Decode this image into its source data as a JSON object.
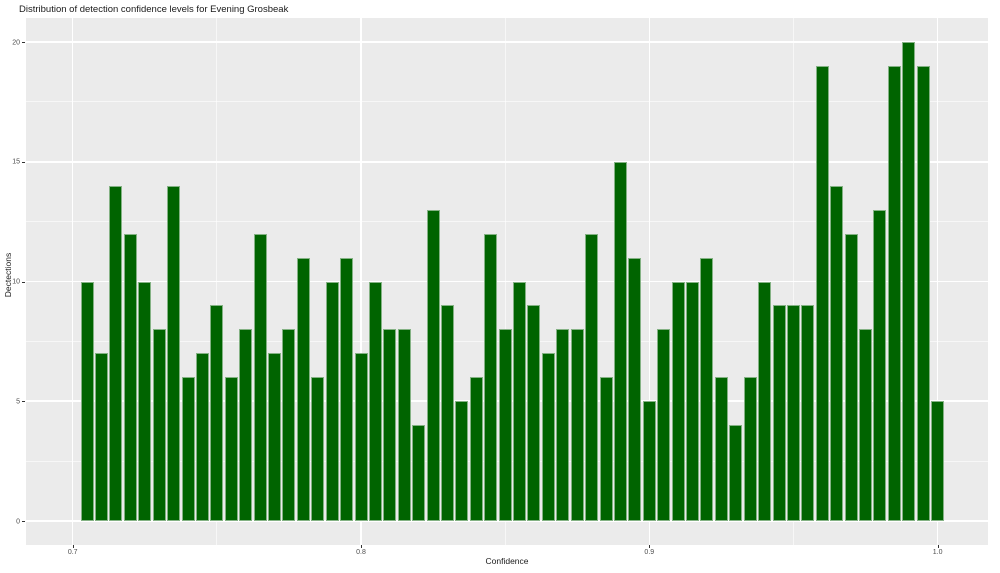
{
  "title": "Distribution of detection confidence levels for Evening Grosbeak",
  "chart_data": {
    "type": "bar",
    "subtype": "histogram",
    "title": "Distribution of detection confidence levels for Evening Grosbeak",
    "xlabel": "Confidence",
    "ylabel": "Dectections",
    "xlim": [
      0.686,
      1.018
    ],
    "ylim": [
      -1,
      21
    ],
    "grid": "on",
    "legend": "none",
    "bin_width": 0.005,
    "bin_centers": [
      0.705,
      0.71,
      0.715,
      0.72,
      0.725,
      0.73,
      0.735,
      0.74,
      0.745,
      0.75,
      0.755,
      0.76,
      0.765,
      0.77,
      0.775,
      0.78,
      0.785,
      0.79,
      0.795,
      0.8,
      0.805,
      0.81,
      0.815,
      0.82,
      0.825,
      0.83,
      0.835,
      0.84,
      0.845,
      0.85,
      0.855,
      0.86,
      0.865,
      0.87,
      0.875,
      0.88,
      0.885,
      0.89,
      0.895,
      0.9,
      0.905,
      0.91,
      0.915,
      0.92,
      0.925,
      0.93,
      0.935,
      0.94,
      0.945,
      0.95,
      0.955,
      0.96,
      0.965,
      0.97,
      0.975,
      0.98,
      0.985,
      0.99,
      0.995,
      1.0
    ],
    "values": [
      10,
      7,
      14,
      12,
      10,
      8,
      14,
      6,
      7,
      9,
      6,
      8,
      12,
      7,
      8,
      11,
      6,
      10,
      11,
      7,
      10,
      8,
      8,
      4,
      13,
      9,
      5,
      6,
      12,
      8,
      10,
      9,
      7,
      8,
      8,
      12,
      6,
      15,
      11,
      5,
      8,
      10,
      10,
      11,
      6,
      4,
      6,
      10,
      9,
      9,
      9,
      19,
      14,
      12,
      8,
      13,
      19,
      20,
      19,
      5
    ],
    "x_ticks": [
      0.7,
      0.8,
      0.9,
      1.0
    ],
    "x_tick_labels": [
      "0.7",
      "0.8",
      "0.9",
      "1.0"
    ],
    "x_minor_gridlines": [
      0.75,
      0.85,
      0.95
    ],
    "y_ticks": [
      0,
      5,
      10,
      15,
      20
    ],
    "y_tick_labels": [
      "0",
      "5",
      "10",
      "15",
      "20"
    ],
    "y_minor_gridlines": [
      2.5,
      7.5,
      12.5,
      17.5
    ],
    "colors": {
      "bar_fill": "#006400",
      "bar_border": "#84B284",
      "panel_background": "#EBEBEB",
      "gridline": "#FFFFFF",
      "figure_background": "#FFFFFF",
      "tick_label": "#4D4D4D",
      "tick_mark": "#333333",
      "text": "#1A1A1A"
    }
  }
}
